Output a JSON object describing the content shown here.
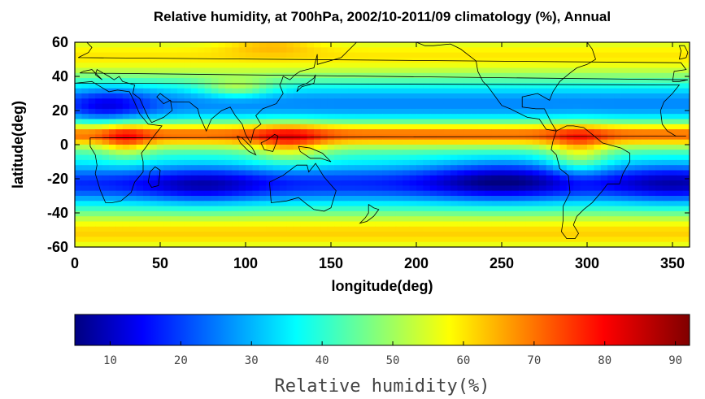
{
  "chart_data": {
    "type": "heatmap",
    "title": "Relative humidity, at 700hPa, 2002/10-2011/09 climatology (%), Annual",
    "xlabel": "longitude(deg)",
    "ylabel": "latitude(deg)",
    "xlim": [
      0,
      360
    ],
    "ylim": [
      -60,
      60
    ],
    "x_ticks": [
      0,
      50,
      100,
      150,
      200,
      250,
      300,
      350
    ],
    "y_ticks": [
      60,
      40,
      20,
      0,
      -20,
      -40,
      -60
    ],
    "colorbar": {
      "label": "Relative humidity(%)",
      "range": [
        5,
        92
      ],
      "ticks": [
        10,
        20,
        30,
        40,
        50,
        60,
        70,
        80,
        90
      ],
      "colormap": "jet"
    },
    "field_features": [
      {
        "lat": 6,
        "lon_range": [
          0,
          360
        ],
        "rh": 70
      },
      {
        "lat": -25,
        "lon_range": [
          0,
          360
        ],
        "rh": 15
      },
      {
        "lat": 25,
        "lon_range": [
          0,
          360
        ],
        "rh": 25
      },
      {
        "lat": 50,
        "lon_range": [
          0,
          360
        ],
        "rh": 60
      },
      {
        "lat": -50,
        "lon_range": [
          0,
          360
        ],
        "rh": 60
      }
    ]
  },
  "colors": {
    "jet_stops": [
      "#000080",
      "#0000ff",
      "#00ffff",
      "#ffff00",
      "#ff0000",
      "#800000"
    ],
    "coastline": "#000000"
  }
}
